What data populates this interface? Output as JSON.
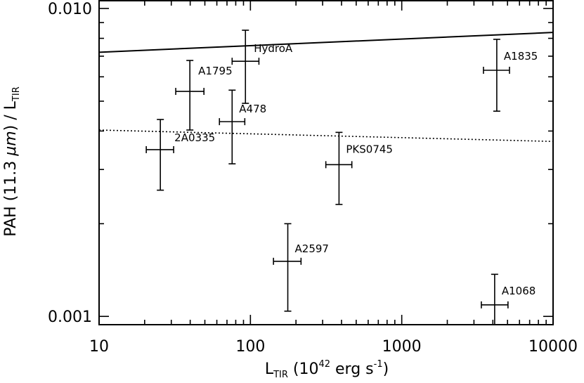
{
  "chart_data": {
    "type": "scatter",
    "xlabel": [
      "L",
      "TIR",
      " (10",
      "42",
      " erg s",
      "-1",
      ")"
    ],
    "ylabel": [
      "PAH (11.3 ",
      "μm",
      ") / L",
      "TIR"
    ],
    "labels": [
      "2A0335",
      "A1795",
      "A478",
      "HydroA",
      "PKS0745",
      "A2597",
      "A1835",
      "A1068"
    ],
    "x": [
      25.4,
      39.8,
      75.7,
      92.7,
      385,
      176.6,
      4246,
      4111
    ],
    "x_low": [
      20.5,
      32.1,
      62.4,
      75.7,
      315,
      142,
      3467,
      3357
    ],
    "x_high": [
      31.1,
      49.3,
      91.8,
      113.8,
      468,
      216,
      5152,
      5035
    ],
    "values": [
      0.00348,
      0.00538,
      0.00429,
      0.00674,
      0.00311,
      0.00151,
      0.0063,
      0.00109
    ],
    "y_low": [
      0.00257,
      0.00403,
      0.00313,
      0.00492,
      0.00231,
      0.00104,
      0.00464,
      0.0009
    ],
    "y_high": [
      0.00436,
      0.00678,
      0.00543,
      0.0085,
      0.00396,
      0.002,
      0.00794,
      0.00137
    ],
    "color": "#000000",
    "lines": [
      {
        "x": [
          10,
          10000
        ],
        "values": [
          0.00721,
          0.00836
        ],
        "style": "solid"
      },
      {
        "x": [
          10,
          10000
        ],
        "values": [
          0.00403,
          0.0037
        ],
        "style": "dotted"
      }
    ],
    "xscale": "log",
    "yscale": "log",
    "xlim": [
      10,
      10000
    ],
    "ylim": [
      0.00094,
      0.0106
    ],
    "xticks": [
      10,
      100,
      1000,
      10000
    ],
    "yticks": [
      {
        "value": 0.01,
        "label": "0.010"
      },
      {
        "value": 0.001,
        "label": "0.001"
      }
    ],
    "xminor": [
      20,
      30,
      40,
      50,
      60,
      70,
      80,
      90,
      200,
      300,
      400,
      500,
      600,
      700,
      800,
      900,
      2000,
      3000,
      4000,
      5000,
      6000,
      7000,
      8000,
      9000
    ],
    "yminor": [
      0.002,
      0.003,
      0.004,
      0.005,
      0.006,
      0.007,
      0.008,
      0.009
    ]
  }
}
